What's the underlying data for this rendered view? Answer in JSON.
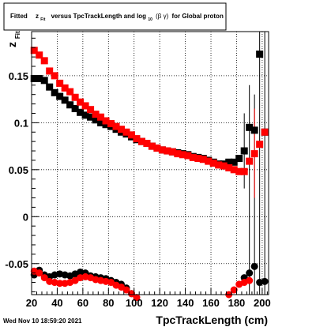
{
  "title": {
    "prefix": "Fitted",
    "z": "z",
    "z_sub": "Fit",
    "middle": "versus TpcTrackLength and log",
    "log_sub": "10",
    "bg": "(β γ)",
    "suffix": "for Global proton"
  },
  "yaxis": {
    "label": "z",
    "label_sub": "Fit"
  },
  "xaxis": {
    "label": "TpcTrackLength (cm)"
  },
  "timestamp": "Wed Nov 10 18:59:20 2021",
  "colors": {
    "black": "#000000",
    "red": "#ff0000",
    "grid": "#000000"
  },
  "chart_data": {
    "type": "scatter",
    "xlim": [
      20,
      205
    ],
    "ylim": [
      -0.083,
      0.197
    ],
    "xticks": [
      20,
      40,
      60,
      80,
      100,
      120,
      140,
      160,
      180,
      200
    ],
    "xtick_labels": [
      "20",
      "40",
      "60",
      "80",
      "100",
      "120",
      "140",
      "160",
      "180",
      "200"
    ],
    "yticks": [
      -0.05,
      0,
      0.05,
      0.1,
      0.15
    ],
    "ytick_labels": [
      "-0.05",
      "0",
      "0.05",
      "0.1",
      "0.15"
    ],
    "grid": true,
    "series": [
      {
        "color": "black",
        "marker": "square",
        "x": [
          22,
          26,
          30,
          34,
          38,
          42,
          46,
          50,
          54,
          58,
          62,
          66,
          70,
          74,
          78,
          82,
          86,
          90,
          94,
          98,
          102,
          106,
          110,
          114,
          118,
          122,
          126,
          130,
          134,
          138,
          142,
          146,
          150,
          154,
          158,
          162,
          166,
          170,
          174,
          178,
          182,
          186,
          190,
          194,
          198,
          202
        ],
        "y": [
          0.147,
          0.147,
          0.145,
          0.138,
          0.132,
          0.128,
          0.124,
          0.119,
          0.115,
          0.111,
          0.108,
          0.106,
          0.103,
          0.1,
          0.098,
          0.096,
          0.093,
          0.09,
          0.088,
          0.085,
          0.082,
          0.08,
          0.078,
          0.075,
          0.073,
          0.071,
          0.07,
          0.069,
          0.068,
          0.067,
          0.066,
          0.064,
          0.063,
          0.062,
          0.06,
          0.058,
          0.056,
          0.056,
          0.058,
          0.058,
          0.062,
          0.07,
          0.095,
          0.092,
          0.173,
          0.09
        ]
      },
      {
        "color": "red",
        "marker": "square",
        "x": [
          22,
          26,
          30,
          34,
          38,
          42,
          46,
          50,
          54,
          58,
          62,
          66,
          70,
          74,
          78,
          82,
          86,
          90,
          94,
          98,
          102,
          106,
          110,
          114,
          118,
          122,
          126,
          130,
          134,
          138,
          142,
          146,
          150,
          154,
          158,
          162,
          166,
          170,
          174,
          178,
          182,
          186,
          190,
          194,
          198,
          202
        ],
        "y": [
          0.177,
          0.172,
          0.166,
          0.155,
          0.15,
          0.142,
          0.137,
          0.133,
          0.127,
          0.122,
          0.118,
          0.114,
          0.109,
          0.106,
          0.102,
          0.099,
          0.096,
          0.093,
          0.09,
          0.087,
          0.083,
          0.08,
          0.078,
          0.075,
          0.073,
          0.071,
          0.07,
          0.069,
          0.067,
          0.066,
          0.065,
          0.063,
          0.062,
          0.061,
          0.059,
          0.057,
          0.055,
          0.054,
          0.052,
          0.05,
          0.048,
          0.048,
          0.059,
          0.067,
          0.077,
          0.09
        ]
      },
      {
        "color": "black",
        "marker": "circle",
        "x": [
          22,
          26,
          30,
          34,
          38,
          42,
          46,
          50,
          54,
          58,
          62,
          66,
          70,
          74,
          78,
          82,
          86,
          90,
          94,
          98,
          186,
          190,
          194,
          198,
          202
        ],
        "y": [
          -0.062,
          -0.057,
          -0.062,
          -0.064,
          -0.062,
          -0.061,
          -0.062,
          -0.063,
          -0.061,
          -0.059,
          -0.06,
          -0.063,
          -0.064,
          -0.065,
          -0.066,
          -0.068,
          -0.07,
          -0.072,
          -0.076,
          -0.082,
          -0.065,
          -0.06,
          -0.053,
          -0.07,
          -0.069
        ]
      },
      {
        "color": "red",
        "marker": "circle",
        "x": [
          22,
          26,
          30,
          34,
          38,
          42,
          46,
          50,
          54,
          58,
          62,
          66,
          70,
          74,
          78,
          82,
          86,
          90,
          94,
          98,
          102,
          174,
          178,
          182,
          186,
          190
        ],
        "y": [
          -0.058,
          -0.06,
          -0.065,
          -0.069,
          -0.07,
          -0.071,
          -0.071,
          -0.07,
          -0.068,
          -0.065,
          -0.064,
          -0.065,
          -0.067,
          -0.068,
          -0.069,
          -0.07,
          -0.073,
          -0.075,
          -0.078,
          -0.082,
          -0.086,
          -0.083,
          -0.078,
          -0.072,
          -0.07,
          -0.068
        ]
      }
    ],
    "error_bars": [
      {
        "color": "black",
        "x": 186,
        "low": 0.03,
        "high": 0.11
      },
      {
        "color": "black",
        "x": 190,
        "low": -0.083,
        "high": 0.14
      },
      {
        "color": "black",
        "x": 194,
        "low": -0.083,
        "high": 0.13
      },
      {
        "color": "black",
        "x": 198,
        "low": -0.083,
        "high": 0.197
      },
      {
        "color": "black",
        "x": 202,
        "low": -0.083,
        "high": 0.197
      },
      {
        "color": "red",
        "x": 194,
        "low": 0.02,
        "high": 0.115
      }
    ]
  }
}
